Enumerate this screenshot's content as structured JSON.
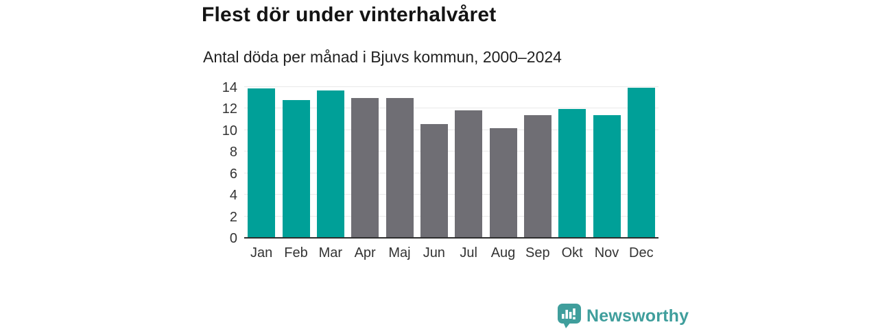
{
  "header": {
    "title": "Flest dör under vinterhalvåret",
    "subtitle": "Antal döda per månad i Bjuvs kommun, 2000–2024"
  },
  "chart_data": {
    "type": "bar",
    "title": "Flest dör under vinterhalvåret",
    "subtitle": "Antal döda per månad i Bjuvs kommun, 2000–2024",
    "categories": [
      "Jan",
      "Feb",
      "Mar",
      "Apr",
      "Maj",
      "Jun",
      "Jul",
      "Aug",
      "Sep",
      "Okt",
      "Nov",
      "Dec"
    ],
    "values": [
      13.8,
      12.7,
      13.6,
      12.9,
      12.9,
      10.5,
      11.8,
      10.1,
      11.3,
      11.9,
      11.3,
      13.9
    ],
    "bar_colors": [
      "#00a098",
      "#00a098",
      "#00a098",
      "#6f6e74",
      "#6f6e74",
      "#6f6e74",
      "#6f6e74",
      "#6f6e74",
      "#6f6e74",
      "#00a098",
      "#00a098",
      "#00a098"
    ],
    "xlabel": "",
    "ylabel": "",
    "ylim": [
      0,
      14
    ],
    "yticks": [
      0,
      2,
      4,
      6,
      8,
      10,
      12,
      14
    ],
    "grid": "horizontal",
    "legend": "none",
    "colors": {
      "winter_months": "#00a098",
      "summer_months": "#6f6e74",
      "gridline": "#e9e9e9",
      "axis_line": "#2d2d2d"
    }
  },
  "branding": {
    "name": "Newsworthy",
    "color": "#3f9e9c",
    "icon": "bar-chart-speech-bubble-icon"
  }
}
